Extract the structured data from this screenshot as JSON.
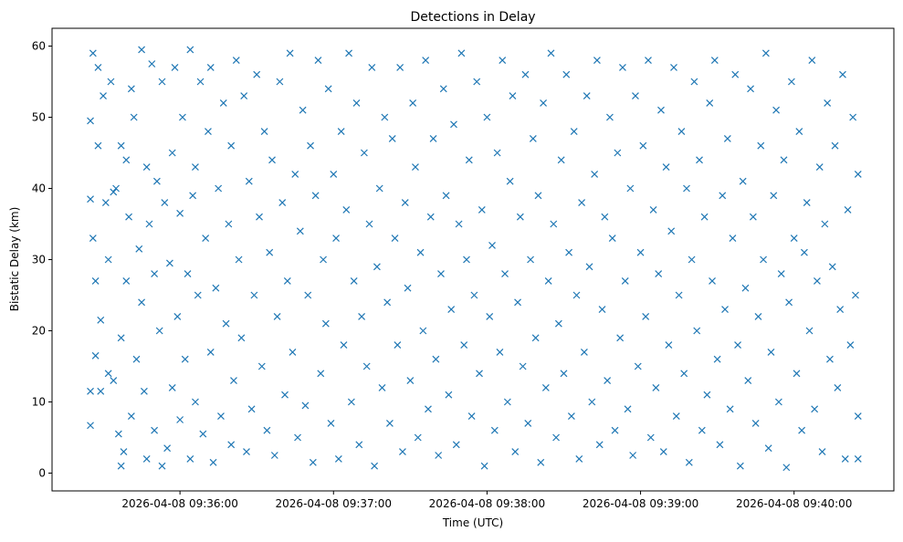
{
  "chart_data": {
    "type": "scatter",
    "title": "Detections in Delay",
    "xlabel": "Time (UTC)",
    "ylabel": "Bistatic Delay (km)",
    "x_units": "seconds after 2026-04-08 09:35:00 UTC",
    "xlim": [
      10,
      339
    ],
    "ylim": [
      -2.5,
      62.5
    ],
    "xticks": [
      {
        "value": 60,
        "label": "2026-04-08 09:36:00"
      },
      {
        "value": 120,
        "label": "2026-04-08 09:37:00"
      },
      {
        "value": 180,
        "label": "2026-04-08 09:38:00"
      },
      {
        "value": 240,
        "label": "2026-04-08 09:39:00"
      },
      {
        "value": 300,
        "label": "2026-04-08 09:40:00"
      }
    ],
    "yticks": [
      {
        "value": 0,
        "label": "0"
      },
      {
        "value": 10,
        "label": "10"
      },
      {
        "value": 20,
        "label": "20"
      },
      {
        "value": 30,
        "label": "30"
      },
      {
        "value": 40,
        "label": "40"
      },
      {
        "value": 50,
        "label": "50"
      },
      {
        "value": 60,
        "label": "60"
      }
    ],
    "grid": false,
    "marker": "x",
    "color": "#1f77b4",
    "points": [
      [
        25,
        49.5
      ],
      [
        25,
        38.5
      ],
      [
        25,
        11.5
      ],
      [
        25,
        6.7
      ],
      [
        26,
        59
      ],
      [
        26,
        33
      ],
      [
        27,
        27
      ],
      [
        27,
        16.5
      ],
      [
        28,
        57
      ],
      [
        28,
        46
      ],
      [
        29,
        21.5
      ],
      [
        29,
        11.5
      ],
      [
        30,
        53
      ],
      [
        31,
        38
      ],
      [
        32,
        14
      ],
      [
        32,
        30
      ],
      [
        33,
        55
      ],
      [
        34,
        13
      ],
      [
        34,
        39.5
      ],
      [
        35,
        40
      ],
      [
        36,
        5.5
      ],
      [
        37,
        46
      ],
      [
        37,
        1
      ],
      [
        37,
        19
      ],
      [
        38,
        3
      ],
      [
        39,
        27
      ],
      [
        39,
        44
      ],
      [
        40,
        36
      ],
      [
        41,
        54
      ],
      [
        41,
        8
      ],
      [
        42,
        50
      ],
      [
        43,
        16
      ],
      [
        44,
        31.5
      ],
      [
        45,
        59.5
      ],
      [
        45,
        24
      ],
      [
        46,
        11.5
      ],
      [
        47,
        43
      ],
      [
        47,
        2
      ],
      [
        48,
        35
      ],
      [
        49,
        57.5
      ],
      [
        50,
        28
      ],
      [
        50,
        6
      ],
      [
        51,
        41
      ],
      [
        52,
        20
      ],
      [
        53,
        1
      ],
      [
        53,
        55
      ],
      [
        54,
        38
      ],
      [
        55,
        3.5
      ],
      [
        56,
        29.5
      ],
      [
        57,
        45
      ],
      [
        57,
        12
      ],
      [
        58,
        57
      ],
      [
        59,
        22
      ],
      [
        60,
        36.5
      ],
      [
        60,
        7.5
      ],
      [
        61,
        50
      ],
      [
        62,
        16
      ],
      [
        63,
        28
      ],
      [
        64,
        59.5
      ],
      [
        64,
        2
      ],
      [
        65,
        39
      ],
      [
        66,
        43
      ],
      [
        66,
        10
      ],
      [
        67,
        25
      ],
      [
        68,
        55
      ],
      [
        69,
        5.5
      ],
      [
        70,
        33
      ],
      [
        71,
        48
      ],
      [
        72,
        17
      ],
      [
        72,
        57
      ],
      [
        73,
        1.5
      ],
      [
        74,
        26
      ],
      [
        75,
        40
      ],
      [
        76,
        8
      ],
      [
        77,
        52
      ],
      [
        78,
        21
      ],
      [
        79,
        35
      ],
      [
        80,
        4
      ],
      [
        80,
        46
      ],
      [
        81,
        13
      ],
      [
        82,
        58
      ],
      [
        83,
        30
      ],
      [
        84,
        19
      ],
      [
        85,
        53
      ],
      [
        86,
        3
      ],
      [
        87,
        41
      ],
      [
        88,
        9
      ],
      [
        89,
        25
      ],
      [
        90,
        56
      ],
      [
        91,
        36
      ],
      [
        92,
        15
      ],
      [
        93,
        48
      ],
      [
        94,
        6
      ],
      [
        95,
        31
      ],
      [
        96,
        44
      ],
      [
        97,
        2.5
      ],
      [
        98,
        22
      ],
      [
        99,
        55
      ],
      [
        100,
        38
      ],
      [
        101,
        11
      ],
      [
        102,
        27
      ],
      [
        103,
        59
      ],
      [
        104,
        17
      ],
      [
        105,
        42
      ],
      [
        106,
        5
      ],
      [
        107,
        34
      ],
      [
        108,
        51
      ],
      [
        109,
        9.5
      ],
      [
        110,
        25
      ],
      [
        111,
        46
      ],
      [
        112,
        1.5
      ],
      [
        113,
        39
      ],
      [
        114,
        58
      ],
      [
        115,
        14
      ],
      [
        116,
        30
      ],
      [
        117,
        21
      ],
      [
        118,
        54
      ],
      [
        119,
        7
      ],
      [
        120,
        42
      ],
      [
        121,
        33
      ],
      [
        122,
        2
      ],
      [
        123,
        48
      ],
      [
        124,
        18
      ],
      [
        125,
        37
      ],
      [
        126,
        59
      ],
      [
        127,
        10
      ],
      [
        128,
        27
      ],
      [
        129,
        52
      ],
      [
        130,
        4
      ],
      [
        131,
        22
      ],
      [
        132,
        45
      ],
      [
        133,
        15
      ],
      [
        134,
        35
      ],
      [
        135,
        57
      ],
      [
        136,
        1
      ],
      [
        137,
        29
      ],
      [
        138,
        40
      ],
      [
        139,
        12
      ],
      [
        140,
        50
      ],
      [
        141,
        24
      ],
      [
        142,
        7
      ],
      [
        143,
        47
      ],
      [
        144,
        33
      ],
      [
        145,
        18
      ],
      [
        146,
        57
      ],
      [
        147,
        3
      ],
      [
        148,
        38
      ],
      [
        149,
        26
      ],
      [
        150,
        13
      ],
      [
        151,
        52
      ],
      [
        152,
        43
      ],
      [
        153,
        5
      ],
      [
        154,
        31
      ],
      [
        155,
        20
      ],
      [
        156,
        58
      ],
      [
        157,
        9
      ],
      [
        158,
        36
      ],
      [
        159,
        47
      ],
      [
        160,
        16
      ],
      [
        161,
        2.5
      ],
      [
        162,
        28
      ],
      [
        163,
        54
      ],
      [
        164,
        39
      ],
      [
        165,
        11
      ],
      [
        166,
        23
      ],
      [
        167,
        49
      ],
      [
        168,
        4
      ],
      [
        169,
        35
      ],
      [
        170,
        59
      ],
      [
        171,
        18
      ],
      [
        172,
        30
      ],
      [
        173,
        44
      ],
      [
        174,
        8
      ],
      [
        175,
        25
      ],
      [
        176,
        55
      ],
      [
        177,
        14
      ],
      [
        178,
        37
      ],
      [
        179,
        1
      ],
      [
        180,
        50
      ],
      [
        181,
        22
      ],
      [
        182,
        32
      ],
      [
        183,
        6
      ],
      [
        184,
        45
      ],
      [
        185,
        17
      ],
      [
        186,
        58
      ],
      [
        187,
        28
      ],
      [
        188,
        10
      ],
      [
        189,
        41
      ],
      [
        190,
        53
      ],
      [
        191,
        3
      ],
      [
        192,
        24
      ],
      [
        193,
        36
      ],
      [
        194,
        15
      ],
      [
        195,
        56
      ],
      [
        196,
        7
      ],
      [
        197,
        30
      ],
      [
        198,
        47
      ],
      [
        199,
        19
      ],
      [
        200,
        39
      ],
      [
        201,
        1.5
      ],
      [
        202,
        52
      ],
      [
        203,
        12
      ],
      [
        204,
        27
      ],
      [
        205,
        59
      ],
      [
        206,
        35
      ],
      [
        207,
        5
      ],
      [
        208,
        21
      ],
      [
        209,
        44
      ],
      [
        210,
        14
      ],
      [
        211,
        56
      ],
      [
        212,
        31
      ],
      [
        213,
        8
      ],
      [
        214,
        48
      ],
      [
        215,
        25
      ],
      [
        216,
        2
      ],
      [
        217,
        38
      ],
      [
        218,
        17
      ],
      [
        219,
        53
      ],
      [
        220,
        29
      ],
      [
        221,
        10
      ],
      [
        222,
        42
      ],
      [
        223,
        58
      ],
      [
        224,
        4
      ],
      [
        225,
        23
      ],
      [
        226,
        36
      ],
      [
        227,
        13
      ],
      [
        228,
        50
      ],
      [
        229,
        33
      ],
      [
        230,
        6
      ],
      [
        231,
        45
      ],
      [
        232,
        19
      ],
      [
        233,
        57
      ],
      [
        234,
        27
      ],
      [
        235,
        9
      ],
      [
        236,
        40
      ],
      [
        237,
        2.5
      ],
      [
        238,
        53
      ],
      [
        239,
        15
      ],
      [
        240,
        31
      ],
      [
        241,
        46
      ],
      [
        242,
        22
      ],
      [
        243,
        58
      ],
      [
        244,
        5
      ],
      [
        245,
        37
      ],
      [
        246,
        12
      ],
      [
        247,
        28
      ],
      [
        248,
        51
      ],
      [
        249,
        3
      ],
      [
        250,
        43
      ],
      [
        251,
        18
      ],
      [
        252,
        34
      ],
      [
        253,
        57
      ],
      [
        254,
        8
      ],
      [
        255,
        25
      ],
      [
        256,
        48
      ],
      [
        257,
        14
      ],
      [
        258,
        40
      ],
      [
        259,
        1.5
      ],
      [
        260,
        30
      ],
      [
        261,
        55
      ],
      [
        262,
        20
      ],
      [
        263,
        44
      ],
      [
        264,
        6
      ],
      [
        265,
        36
      ],
      [
        266,
        11
      ],
      [
        267,
        52
      ],
      [
        268,
        27
      ],
      [
        269,
        58
      ],
      [
        270,
        16
      ],
      [
        271,
        4
      ],
      [
        272,
        39
      ],
      [
        273,
        23
      ],
      [
        274,
        47
      ],
      [
        275,
        9
      ],
      [
        276,
        33
      ],
      [
        277,
        56
      ],
      [
        278,
        18
      ],
      [
        279,
        1
      ],
      [
        280,
        41
      ],
      [
        281,
        26
      ],
      [
        282,
        13
      ],
      [
        283,
        54
      ],
      [
        284,
        36
      ],
      [
        285,
        7
      ],
      [
        286,
        22
      ],
      [
        287,
        46
      ],
      [
        288,
        30
      ],
      [
        289,
        59
      ],
      [
        290,
        3.5
      ],
      [
        291,
        17
      ],
      [
        292,
        39
      ],
      [
        293,
        51
      ],
      [
        294,
        10
      ],
      [
        295,
        28
      ],
      [
        296,
        44
      ],
      [
        297,
        0.8
      ],
      [
        298,
        24
      ],
      [
        299,
        55
      ],
      [
        300,
        33
      ],
      [
        301,
        14
      ],
      [
        302,
        48
      ],
      [
        303,
        6
      ],
      [
        304,
        31
      ],
      [
        305,
        38
      ],
      [
        306,
        20
      ],
      [
        307,
        58
      ],
      [
        308,
        9
      ],
      [
        309,
        27
      ],
      [
        310,
        43
      ],
      [
        311,
        3
      ],
      [
        312,
        35
      ],
      [
        313,
        52
      ],
      [
        314,
        16
      ],
      [
        315,
        29
      ],
      [
        316,
        46
      ],
      [
        317,
        12
      ],
      [
        318,
        23
      ],
      [
        319,
        56
      ],
      [
        320,
        2
      ],
      [
        321,
        37
      ],
      [
        322,
        18
      ],
      [
        323,
        50
      ],
      [
        324,
        25
      ],
      [
        325,
        8
      ],
      [
        325,
        42
      ],
      [
        325,
        2
      ]
    ]
  }
}
